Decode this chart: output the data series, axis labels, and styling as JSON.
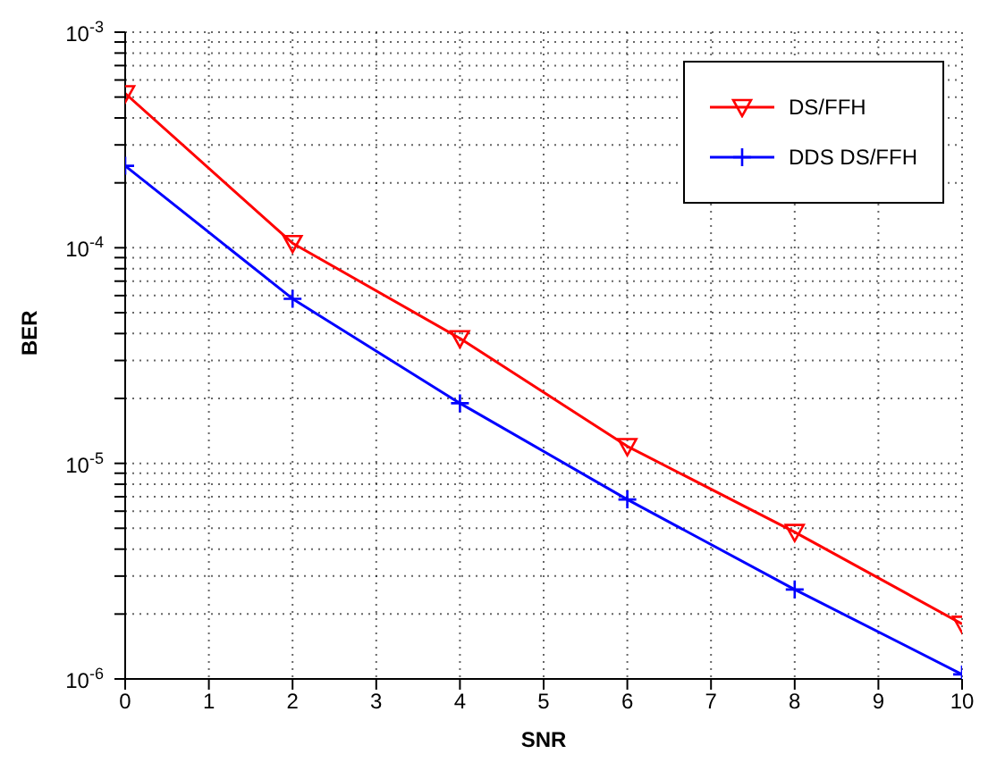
{
  "chart_data": {
    "type": "line",
    "xlabel": "SNR",
    "ylabel": "BER",
    "x": [
      0,
      2,
      4,
      6,
      8,
      10
    ],
    "series": [
      {
        "name": "DS/FFH",
        "color": "#ff0000",
        "marker": "triangle",
        "values": [
          0.00052,
          0.000105,
          3.8e-05,
          1.2e-05,
          4.8e-06,
          1.8e-06
        ]
      },
      {
        "name": "DDS DS/FFH",
        "color": "#0000ff",
        "marker": "cross",
        "values": [
          0.00024,
          5.8e-05,
          1.9e-05,
          6.8e-06,
          2.6e-06,
          1.05e-06
        ]
      }
    ],
    "log": "y",
    "xlim": [
      0,
      10
    ],
    "xticks": [
      0,
      1,
      2,
      3,
      4,
      5,
      6,
      7,
      8,
      9,
      10
    ],
    "ylim": [
      1e-06,
      0.001
    ],
    "yticks": [
      {
        "value": 1e-06,
        "label": "10$^{-6}$"
      },
      {
        "value": 2e-06,
        "label": null
      },
      {
        "value": 3e-06,
        "label": null
      },
      {
        "value": 4e-06,
        "label": null
      },
      {
        "value": 5e-06,
        "label": null
      },
      {
        "value": 6e-06,
        "label": null
      },
      {
        "value": 7e-06,
        "label": null
      },
      {
        "value": 8e-06,
        "label": null
      },
      {
        "value": 9e-06,
        "label": null
      },
      {
        "value": 1e-05,
        "label": "10$^{-5}$"
      },
      {
        "value": 2e-05,
        "label": null
      },
      {
        "value": 3e-05,
        "label": null
      },
      {
        "value": 4e-05,
        "label": null
      },
      {
        "value": 5e-05,
        "label": null
      },
      {
        "value": 6e-05,
        "label": null
      },
      {
        "value": 7e-05,
        "label": null
      },
      {
        "value": 8e-05,
        "label": null
      },
      {
        "value": 9e-05,
        "label": null
      },
      {
        "value": 0.0001,
        "label": "10$^{-4}$"
      },
      {
        "value": 0.0002,
        "label": null
      },
      {
        "value": 0.0003,
        "label": null
      },
      {
        "value": 0.0004,
        "label": null
      },
      {
        "value": 0.0005,
        "label": null
      },
      {
        "value": 0.0006,
        "label": null
      },
      {
        "value": 0.0007,
        "label": null
      },
      {
        "value": 0.0008,
        "label": null
      },
      {
        "value": 0.0009,
        "label": null
      },
      {
        "value": 0.001,
        "label": "10$^{-3}$"
      }
    ],
    "grid": true,
    "legend": "top right",
    "line_style": "solid"
  }
}
